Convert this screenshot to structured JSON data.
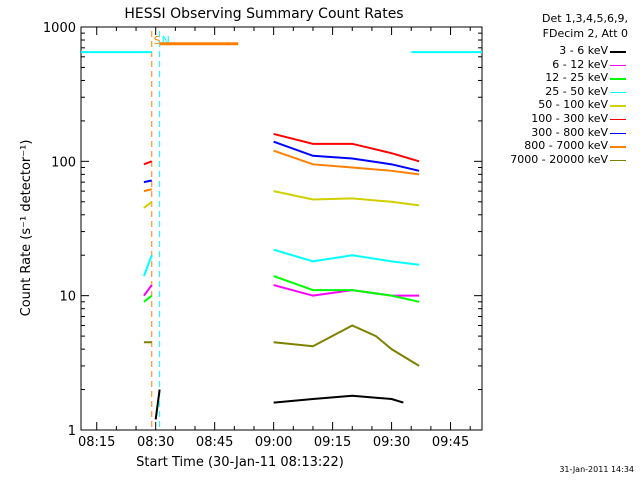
{
  "chart_data": {
    "type": "line",
    "title": "HESSI Observing Summary Count Rates",
    "xlabel": "Start Time (30-Jan-11 08:13:22)",
    "ylabel": "Count Rate (s⁻¹ detector⁻¹)",
    "xlim": [
      "08:11",
      "09:53"
    ],
    "ylim": [
      1,
      1000
    ],
    "yscale": "log",
    "x_ticks": [
      "08:15",
      "08:30",
      "08:45",
      "09:00",
      "09:15",
      "09:30",
      "09:45"
    ],
    "y_ticks": [
      "1",
      "10",
      "100",
      "1000"
    ],
    "markers": [
      {
        "label": "S",
        "time": "08:29",
        "color": "#ff8000"
      },
      {
        "label": "N",
        "time": "08:31",
        "color": "#00ffff"
      }
    ],
    "series": [
      {
        "name": "3 - 6 keV",
        "color": "#000000",
        "segments": [
          {
            "x": [
              "08:30",
              "08:31"
            ],
            "y": [
              1.2,
              2.0
            ]
          },
          {
            "x": [
              "09:00",
              "09:10",
              "09:20",
              "09:30",
              "09:33"
            ],
            "y": [
              1.6,
              1.7,
              1.8,
              1.7,
              1.6
            ]
          }
        ]
      },
      {
        "name": "6 - 12 keV",
        "color": "#ff00ff",
        "segments": [
          {
            "x": [
              "08:27",
              "08:29"
            ],
            "y": [
              10,
              12
            ]
          },
          {
            "x": [
              "09:00",
              "09:10",
              "09:20",
              "09:30",
              "09:37"
            ],
            "y": [
              12,
              10,
              11,
              10,
              10
            ]
          }
        ]
      },
      {
        "name": "12 - 25 keV",
        "color": "#00ff00",
        "segments": [
          {
            "x": [
              "08:27",
              "08:29"
            ],
            "y": [
              9,
              10
            ]
          },
          {
            "x": [
              "09:00",
              "09:10",
              "09:20",
              "09:30",
              "09:37"
            ],
            "y": [
              14,
              11,
              11,
              10,
              9
            ]
          }
        ]
      },
      {
        "name": "25 - 50 keV",
        "color": "#00ffff",
        "segments": [
          {
            "x": [
              "08:27",
              "08:29"
            ],
            "y": [
              14,
              20
            ]
          },
          {
            "x": [
              "09:00",
              "09:10",
              "09:20",
              "09:30",
              "09:37"
            ],
            "y": [
              22,
              18,
              20,
              18,
              17
            ]
          }
        ]
      },
      {
        "name": "50 - 100 keV",
        "color": "#d0d000",
        "segments": [
          {
            "x": [
              "08:27",
              "08:29"
            ],
            "y": [
              45,
              50
            ]
          },
          {
            "x": [
              "09:00",
              "09:10",
              "09:20",
              "09:30",
              "09:37"
            ],
            "y": [
              60,
              52,
              53,
              50,
              47
            ]
          }
        ]
      },
      {
        "name": "100 - 300 keV",
        "color": "#ff0000",
        "segments": [
          {
            "x": [
              "08:27",
              "08:29"
            ],
            "y": [
              95,
              100
            ]
          },
          {
            "x": [
              "09:00",
              "09:10",
              "09:20",
              "09:30",
              "09:37"
            ],
            "y": [
              160,
              135,
              135,
              115,
              100
            ]
          }
        ]
      },
      {
        "name": "300 - 800 keV",
        "color": "#0000ff",
        "segments": [
          {
            "x": [
              "08:27",
              "08:29"
            ],
            "y": [
              70,
              72
            ]
          },
          {
            "x": [
              "09:00",
              "09:10",
              "09:20",
              "09:30",
              "09:37"
            ],
            "y": [
              140,
              110,
              105,
              95,
              85
            ]
          }
        ]
      },
      {
        "name": "800 - 7000 keV",
        "color": "#ff8000",
        "segments": [
          {
            "x": [
              "08:27",
              "08:29"
            ],
            "y": [
              60,
              62
            ]
          },
          {
            "x": [
              "09:00",
              "09:10",
              "09:20",
              "09:30",
              "09:37"
            ],
            "y": [
              120,
              95,
              90,
              85,
              80
            ]
          },
          {
            "x": [
              "08:31",
              "08:51"
            ],
            "y": [
              750,
              750
            ]
          }
        ]
      },
      {
        "name": "7000 - 20000 keV",
        "color": "#808000",
        "segments": [
          {
            "x": [
              "08:27",
              "08:29"
            ],
            "y": [
              4.5,
              4.5
            ]
          },
          {
            "x": [
              "09:00",
              "09:10",
              "09:20",
              "09:26",
              "09:30",
              "09:37"
            ],
            "y": [
              4.5,
              4.2,
              6.0,
              5.0,
              4.0,
              3.0
            ]
          }
        ]
      },
      {
        "name": "",
        "color": "#00ffff",
        "segments": [
          {
            "x": [
              "08:11",
              "08:29"
            ],
            "y": [
              650,
              650
            ]
          },
          {
            "x": [
              "09:35",
              "09:53"
            ],
            "y": [
              650,
              650
            ]
          }
        ]
      }
    ]
  },
  "legend": {
    "title_line1": "Det 1,3,4,5,6,9,",
    "title_line2": "FDecim 2, Att 0"
  },
  "footer": {
    "timestamp": "31-Jan-2011 14:34"
  }
}
